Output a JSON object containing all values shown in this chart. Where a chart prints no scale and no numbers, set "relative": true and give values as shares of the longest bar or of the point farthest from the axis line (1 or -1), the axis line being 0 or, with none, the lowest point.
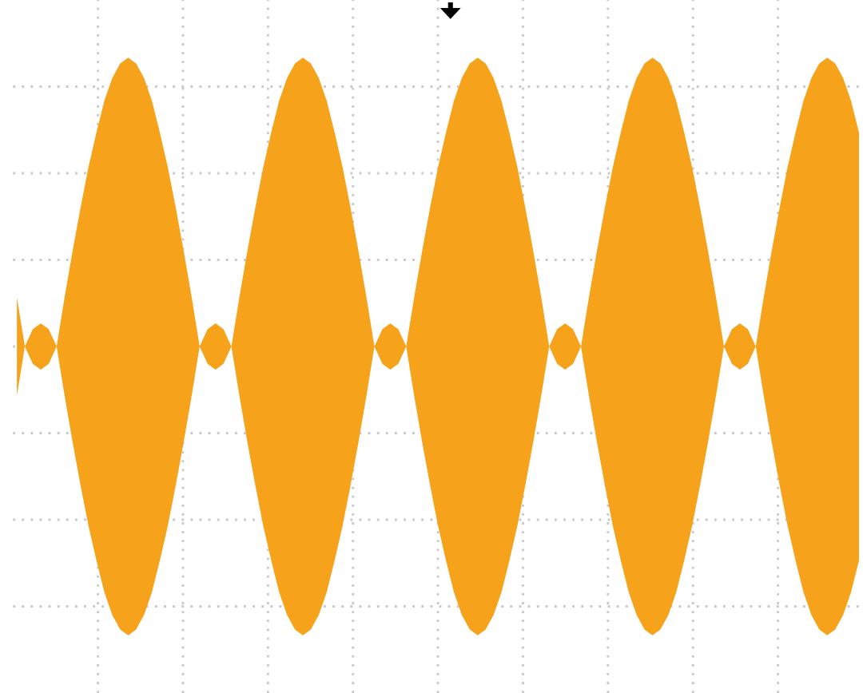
{
  "chart_data": {
    "type": "area",
    "relative": true,
    "grid": true,
    "categories": [
      null,
      null,
      null,
      null,
      null,
      null,
      null,
      null,
      null,
      null,
      null,
      null,
      null,
      null,
      null,
      null,
      null,
      null,
      null,
      null,
      null,
      null,
      null,
      null,
      null,
      null,
      null,
      null,
      null,
      null,
      null,
      null,
      null,
      null,
      null,
      null,
      null,
      null,
      null,
      null,
      null,
      null,
      null,
      null,
      null,
      null,
      null,
      null,
      null,
      null,
      null,
      null,
      null,
      null,
      null,
      null,
      null,
      null,
      null,
      null,
      null,
      null,
      null,
      null,
      null,
      null,
      null,
      null,
      null,
      null,
      null,
      null,
      null,
      null,
      null,
      null,
      null,
      null,
      null,
      null,
      null,
      null,
      null,
      null,
      null,
      null,
      null,
      null,
      null,
      null,
      null,
      null,
      null,
      null,
      null,
      null,
      null,
      null,
      null,
      null,
      null,
      null,
      null,
      null,
      null,
      null,
      null
    ],
    "series": [
      {
        "color": "#f7a21b",
        "values": [
          0.17,
          0,
          0.06,
          0.08,
          0.06,
          0,
          0.17,
          0.33,
          0.48,
          0.62,
          0.74,
          0.85,
          0.93,
          0.98,
          1,
          0.98,
          0.93,
          0.85,
          0.74,
          0.62,
          0.48,
          0.33,
          0.17,
          0,
          0.06,
          0.08,
          0.06,
          0,
          0.17,
          0.33,
          0.48,
          0.62,
          0.74,
          0.85,
          0.93,
          0.98,
          1,
          0.98,
          0.93,
          0.85,
          0.74,
          0.62,
          0.48,
          0.33,
          0.17,
          0,
          0.06,
          0.08,
          0.06,
          0,
          0.17,
          0.33,
          0.48,
          0.62,
          0.74,
          0.85,
          0.93,
          0.98,
          1,
          0.98,
          0.93,
          0.85,
          0.74,
          0.62,
          0.48,
          0.33,
          0.17,
          0,
          0.06,
          0.08,
          0.06,
          0,
          0.17,
          0.33,
          0.48,
          0.62,
          0.74,
          0.85,
          0.93,
          0.98,
          1,
          0.98,
          0.93,
          0.85,
          0.74,
          0.62,
          0.48,
          0.33,
          0.17,
          0,
          0.06,
          0.08,
          0.06,
          0,
          0.17,
          0.33,
          0.48,
          0.62,
          0.74,
          0.85,
          0.93,
          0.98,
          1,
          0.98,
          0.93,
          0.85,
          0.74
        ]
      },
      {
        "color": "#f7a21b",
        "values": [
          -0.17,
          0,
          -0.06,
          -0.08,
          -0.06,
          0,
          -0.17,
          -0.33,
          -0.48,
          -0.62,
          -0.74,
          -0.85,
          -0.93,
          -0.98,
          -1,
          -0.98,
          -0.93,
          -0.85,
          -0.74,
          -0.62,
          -0.48,
          -0.33,
          -0.17,
          0,
          -0.06,
          -0.08,
          -0.06,
          0,
          -0.17,
          -0.33,
          -0.48,
          -0.62,
          -0.74,
          -0.85,
          -0.93,
          -0.98,
          -1,
          -0.98,
          -0.93,
          -0.85,
          -0.74,
          -0.62,
          -0.48,
          -0.33,
          -0.17,
          0,
          -0.06,
          -0.08,
          -0.06,
          0,
          -0.17,
          -0.33,
          -0.48,
          -0.62,
          -0.74,
          -0.85,
          -0.93,
          -0.98,
          -1,
          -0.98,
          -0.93,
          -0.85,
          -0.74,
          -0.62,
          -0.48,
          -0.33,
          -0.17,
          0,
          -0.06,
          -0.08,
          -0.06,
          0,
          -0.17,
          -0.33,
          -0.48,
          -0.62,
          -0.74,
          -0.85,
          -0.93,
          -0.98,
          -1,
          -0.98,
          -0.93,
          -0.85,
          -0.74,
          -0.62,
          -0.48,
          -0.33,
          -0.17,
          0,
          -0.06,
          -0.08,
          -0.06,
          0,
          -0.17,
          -0.33,
          -0.48,
          -0.62,
          -0.74,
          -0.85,
          -0.93,
          -0.98,
          -1,
          -0.98,
          -0.93,
          -0.85,
          -0.74
        ]
      }
    ]
  }
}
